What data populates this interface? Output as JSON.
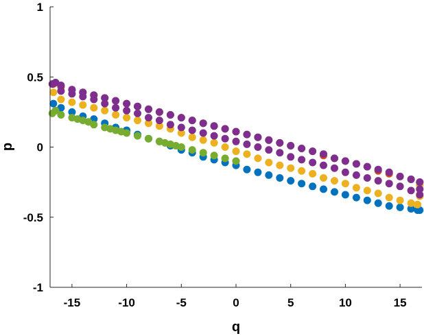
{
  "chart_data": {
    "type": "scatter",
    "title": "",
    "xlabel": "q",
    "ylabel": "p",
    "xlim": [
      -17,
      17
    ],
    "ylim": [
      -1,
      1
    ],
    "x_ticks": [
      -15,
      -10,
      -5,
      0,
      5,
      10,
      15
    ],
    "y_ticks": [
      1,
      0.5,
      0,
      -0.5,
      -1
    ],
    "x_tick_labels": [
      "-15",
      "-10",
      "-5",
      "0",
      "5",
      "10",
      "15"
    ],
    "y_tick_labels": [
      "1",
      "0.5",
      "0",
      "-0.5",
      "-1"
    ],
    "grid": false,
    "series": [
      {
        "color": "#0072BD",
        "x": [
          -16.7,
          -16.0,
          -15.0,
          -14.0,
          -13.0,
          -12.0,
          -11.0,
          -10.0,
          -9.0,
          -8.0,
          -7.0,
          -6.0,
          -5.0,
          -4.0,
          -3.0,
          -2.0,
          -1.0,
          0.0,
          1.0,
          2.0,
          3.0,
          4.0,
          5.0,
          6.0,
          7.0,
          8.0,
          9.0,
          10.0,
          11.0,
          12.0,
          13.0,
          14.0,
          15.0,
          16.0,
          16.6,
          16.8
        ],
        "y": [
          0.31,
          0.28,
          0.25,
          0.22,
          0.2,
          0.17,
          0.14,
          0.12,
          0.09,
          0.06,
          0.04,
          0.01,
          -0.02,
          -0.04,
          -0.07,
          -0.09,
          -0.11,
          -0.13,
          -0.16,
          -0.18,
          -0.2,
          -0.22,
          -0.24,
          -0.26,
          -0.28,
          -0.3,
          -0.32,
          -0.34,
          -0.36,
          -0.38,
          -0.4,
          -0.42,
          -0.43,
          -0.44,
          -0.45,
          -0.45
        ]
      },
      {
        "color": "#D95319",
        "x": [
          -16.7,
          -16.0,
          -15.0,
          -14.0,
          -13.0,
          -12.0,
          -11.0,
          -10.0,
          -9.0,
          -8.0,
          -7.0,
          -6.0,
          -5.0,
          -4.0,
          -3.0,
          -2.0,
          -1.0,
          0.0,
          1.0,
          2.0,
          3.0,
          4.0,
          5.0,
          6.0,
          7.0,
          8.0,
          9.0,
          10.0,
          11.0,
          12.0,
          13.0,
          14.0,
          15.0,
          16.0,
          16.8
        ],
        "y": [
          0.45,
          0.43,
          0.41,
          0.39,
          0.37,
          0.35,
          0.33,
          0.31,
          0.29,
          0.27,
          0.25,
          0.23,
          0.21,
          0.19,
          0.17,
          0.15,
          0.13,
          0.11,
          0.09,
          0.07,
          0.05,
          0.03,
          0.01,
          -0.01,
          -0.03,
          -0.06,
          -0.08,
          -0.1,
          -0.12,
          -0.14,
          -0.17,
          -0.19,
          -0.21,
          -0.23,
          -0.25
        ]
      },
      {
        "color": "#EDB120",
        "x": [
          -16.7,
          -16.0,
          -15.0,
          -14.0,
          -13.0,
          -12.0,
          -11.0,
          -10.0,
          -9.0,
          -8.0,
          -7.0,
          -6.0,
          -5.0,
          -4.0,
          -3.0,
          -2.0,
          -1.0,
          0.0,
          1.0,
          2.0,
          3.0,
          4.0,
          5.0,
          6.0,
          7.0,
          8.0,
          9.0,
          10.0,
          11.0,
          12.0,
          13.0,
          14.0,
          15.0,
          16.0,
          16.6,
          16.8,
          16.8,
          16.8
        ],
        "y": [
          0.39,
          0.34,
          0.32,
          0.3,
          0.28,
          0.26,
          0.23,
          0.21,
          0.19,
          0.17,
          0.15,
          0.13,
          0.1,
          0.07,
          0.05,
          0.03,
          0.0,
          -0.03,
          -0.05,
          -0.08,
          -0.11,
          -0.13,
          -0.15,
          -0.17,
          -0.19,
          -0.22,
          -0.24,
          -0.26,
          -0.29,
          -0.31,
          -0.33,
          -0.36,
          -0.38,
          -0.4,
          -0.41,
          -0.35,
          -0.3,
          -0.27
        ]
      },
      {
        "color": "#7E2F8E",
        "x": [
          -16.8,
          -16.5,
          -16.0,
          -15.0,
          -14.0,
          -13.0,
          -12.0,
          -11.0,
          -10.0,
          -9.0,
          -8.0,
          -7.0,
          -6.0,
          -5.0,
          -4.0,
          -3.0,
          -2.0,
          -1.0,
          0.0,
          1.0,
          2.0,
          3.0,
          4.0,
          5.0,
          6.0,
          7.0,
          8.0,
          9.0,
          10.0,
          11.0,
          12.0,
          13.0,
          14.0,
          15.0,
          16.0,
          16.8,
          16.8,
          16.8,
          -16.0,
          -15.0,
          -14.0,
          -13.0,
          -12.0,
          -11.0,
          -10.0,
          -9.0,
          -8.0,
          -7.0,
          -6.0,
          -5.0,
          -4.0,
          -3.0,
          -2.0,
          -1.0,
          0.0,
          1.0,
          2.0,
          3.0,
          4.0,
          5.0,
          6.0,
          7.0,
          8.0,
          9.0,
          10.0,
          11.0,
          12.0,
          13.0,
          14.0,
          15.0,
          16.0
        ],
        "y": [
          0.45,
          0.46,
          0.44,
          0.41,
          0.39,
          0.37,
          0.35,
          0.33,
          0.31,
          0.29,
          0.27,
          0.25,
          0.23,
          0.21,
          0.19,
          0.17,
          0.15,
          0.13,
          0.11,
          0.09,
          0.07,
          0.05,
          0.03,
          0.01,
          -0.01,
          -0.03,
          -0.05,
          -0.08,
          -0.1,
          -0.12,
          -0.14,
          -0.16,
          -0.18,
          -0.21,
          -0.23,
          -0.25,
          -0.3,
          -0.34,
          0.4,
          0.38,
          0.36,
          0.34,
          0.31,
          0.28,
          0.26,
          0.24,
          0.21,
          0.19,
          0.16,
          0.14,
          0.12,
          0.1,
          0.08,
          0.06,
          0.04,
          0.02,
          0.0,
          -0.02,
          -0.04,
          -0.07,
          -0.09,
          -0.11,
          -0.13,
          -0.15,
          -0.18,
          -0.2,
          -0.22,
          -0.24,
          -0.26,
          -0.28,
          -0.31
        ]
      },
      {
        "color": "#77AC30",
        "x": [
          -16.8,
          -16.5,
          -16.0,
          -15.0,
          -14.5,
          -14.0,
          -13.5,
          -13.0,
          -12.0,
          -11.5,
          -11.0,
          -10.5,
          -10.0,
          -9.0,
          -8.0,
          -7.0,
          -6.5,
          -6.0,
          -5.5,
          -5.0,
          -4.0,
          -3.0,
          -2.0,
          -1.0,
          0.0
        ],
        "y": [
          0.24,
          0.26,
          0.23,
          0.21,
          0.2,
          0.19,
          0.18,
          0.16,
          0.14,
          0.13,
          0.12,
          0.11,
          0.1,
          0.08,
          0.06,
          0.04,
          0.03,
          0.02,
          0.01,
          0.0,
          -0.02,
          -0.04,
          -0.06,
          -0.08,
          -0.1
        ]
      }
    ]
  }
}
